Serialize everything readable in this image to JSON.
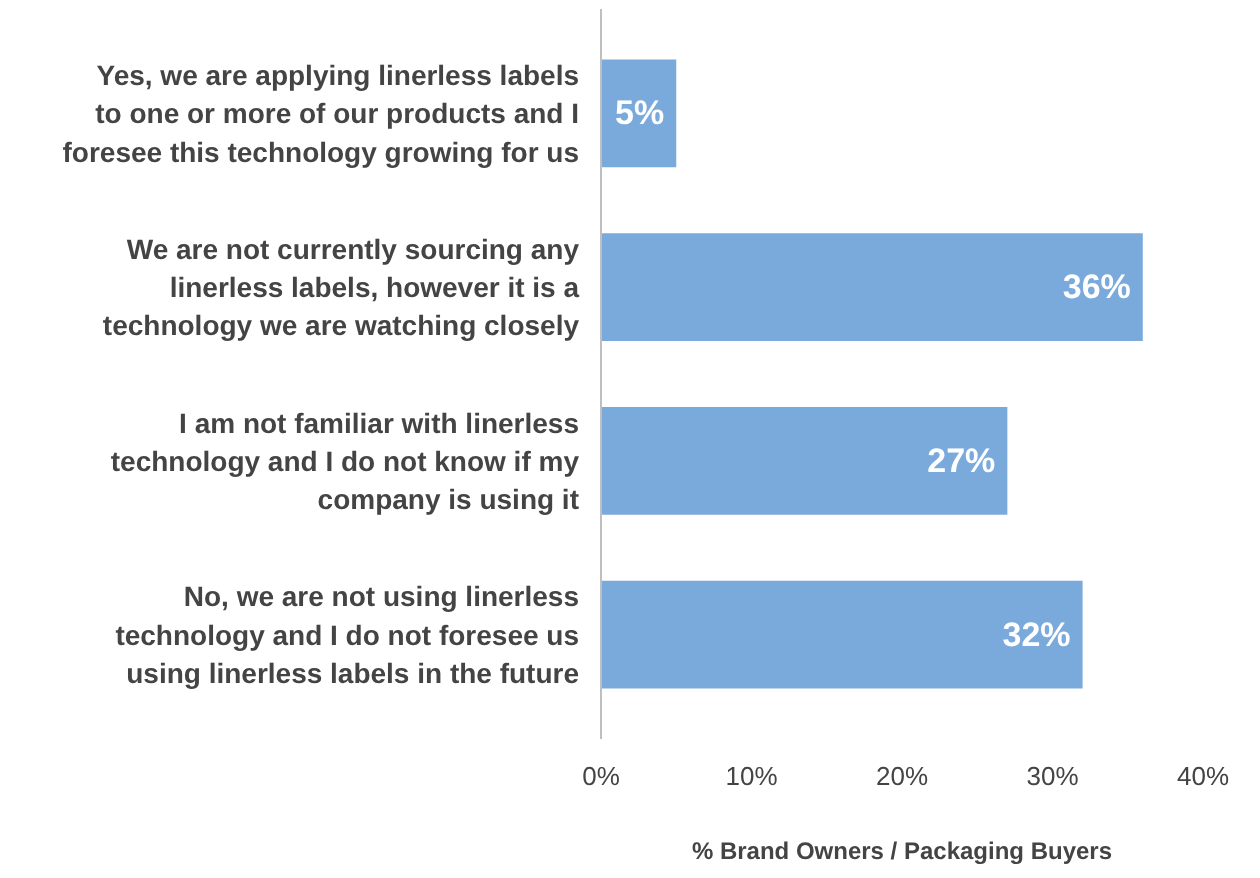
{
  "chart_data": {
    "type": "bar",
    "orientation": "horizontal",
    "xlabel": "% Brand Owners / Packaging Buyers",
    "categories": [
      "Yes, we are applying linerless labels to one or more of our products and I foresee this technology growing for us",
      "We are not currently sourcing any linerless labels, however it is a technology we are watching closely",
      "I am not familiar with linerless technology and I do not know if my company is using it",
      "No, we are not using linerless technology and I do not foresee us using linerless labels in the future"
    ],
    "values": [
      5,
      36,
      27,
      32
    ],
    "value_labels": [
      "5%",
      "36%",
      "27%",
      "32%"
    ],
    "color": "#7aaadc",
    "xlim": [
      0,
      40
    ],
    "xticks": [
      {
        "value": 0,
        "label": "0%"
      },
      {
        "value": 10,
        "label": "10%"
      },
      {
        "value": 20,
        "label": "20%"
      },
      {
        "value": 30,
        "label": "30%"
      },
      {
        "value": 40,
        "label": "40%"
      }
    ],
    "grid": false
  }
}
